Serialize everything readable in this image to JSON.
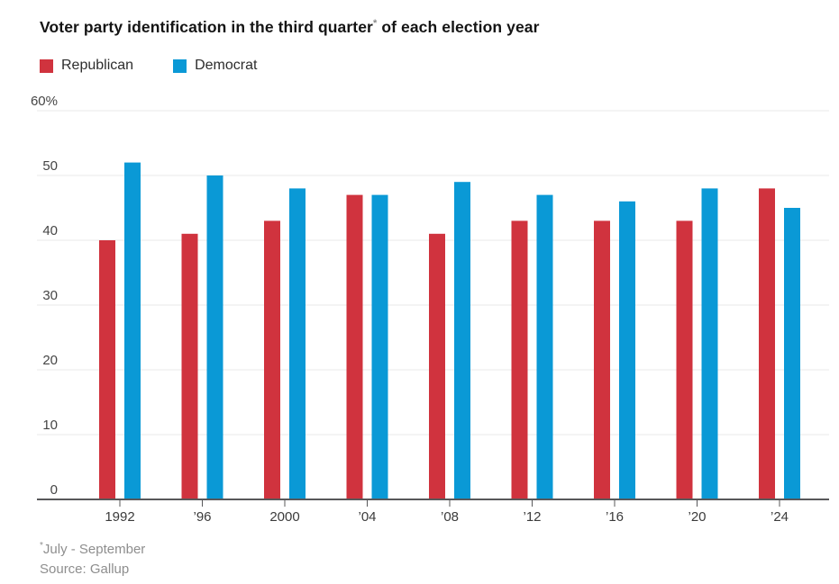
{
  "title": {
    "text": "Voter party identification in the third quarter",
    "sup": "*",
    "text_after": " of each election year"
  },
  "legend": [
    {
      "label": "Republican",
      "color": "#d0333e"
    },
    {
      "label": "Democrat",
      "color": "#0a99d6"
    }
  ],
  "footnote": {
    "sup": "*",
    "text": "July - September"
  },
  "source": "Source: Gallup",
  "colors": {
    "republican": "#d0333e",
    "democrat": "#0a99d6",
    "gridline": "#e9e9e9",
    "axis_line": "#58585a",
    "y_tick_label": "#454545",
    "x_tick_label": "#3b3b3b",
    "background": "#ffffff"
  },
  "chart_data": {
    "type": "bar",
    "title": "Voter party identification in the third quarter* of each election year",
    "categories": [
      "1992",
      "’96",
      "2000",
      "’04",
      "’08",
      "’12",
      "’16",
      "’20",
      "’24"
    ],
    "series": [
      {
        "name": "Republican",
        "color": "#d0333e",
        "values": [
          40,
          41,
          43,
          47,
          41,
          43,
          43,
          43,
          48
        ]
      },
      {
        "name": "Democrat",
        "color": "#0a99d6",
        "values": [
          52,
          50,
          48,
          47,
          49,
          47,
          46,
          48,
          45
        ]
      }
    ],
    "xlabel": "",
    "ylabel": "",
    "y_tick_labels": [
      "0",
      "10",
      "20",
      "30",
      "40",
      "50",
      "60%"
    ],
    "ylim": [
      0,
      60
    ],
    "y_tick_step": 10,
    "grid": true,
    "legend_position": "top-left",
    "footnote": "*July - September",
    "source": "Source: Gallup"
  }
}
